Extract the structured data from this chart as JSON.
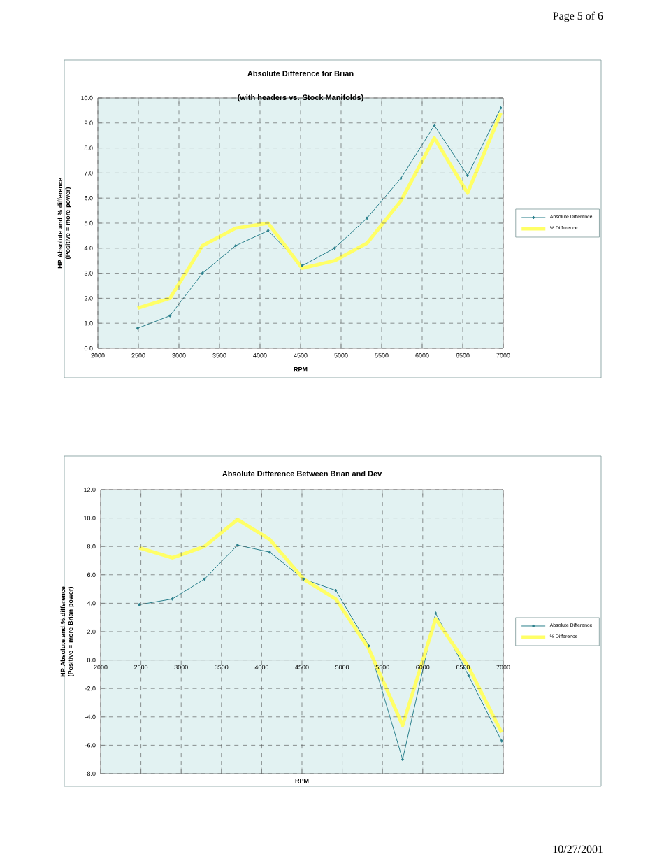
{
  "chart_data": [
    {
      "type": "line",
      "title": "Absolute Difference for Brian",
      "subtitle": "(with headers vs. Stock Manifolds)",
      "xlabel": "RPM",
      "ylabel": "HP Absolute and % difference (Positive = more power)",
      "xlim": [
        2000,
        7000
      ],
      "xticks": [
        2000,
        2500,
        3000,
        3500,
        4000,
        4500,
        5000,
        5500,
        6000,
        6500,
        7000
      ],
      "ylim": [
        0,
        10
      ],
      "yticks": [
        {
          "value": 0,
          "label": "0.0"
        },
        {
          "value": 1,
          "label": "1.0"
        },
        {
          "value": 2,
          "label": "2.0"
        },
        {
          "value": 3,
          "label": "3.0"
        },
        {
          "value": 4,
          "label": "4.0"
        },
        {
          "value": 5,
          "label": "5.0"
        },
        {
          "value": 6,
          "label": "6.0"
        },
        {
          "value": 7,
          "label": "7.0"
        },
        {
          "value": 8,
          "label": "8.0"
        },
        {
          "value": 9,
          "label": "9.0"
        },
        {
          "value": 10,
          "label": "10.0"
        }
      ],
      "x": [
        2490,
        2890,
        3290,
        3700,
        4100,
        4520,
        4920,
        5320,
        5740,
        6150,
        6560,
        6970
      ],
      "series": [
        {
          "name": "Absolute Difference",
          "color": "#2a7f8c",
          "marker": "diamond",
          "values": [
            0.8,
            1.3,
            3.0,
            4.1,
            4.7,
            3.3,
            4.0,
            5.2,
            6.8,
            8.9,
            6.9,
            9.6
          ]
        },
        {
          "name": "% Difference",
          "color": "#ffff66",
          "marker": "none",
          "values": [
            1.6,
            2.0,
            4.1,
            4.8,
            5.0,
            3.2,
            3.5,
            4.2,
            5.9,
            8.4,
            6.2,
            9.4
          ]
        }
      ],
      "grid": true,
      "legend": "right",
      "annotations": [
        "Page 5 of 6"
      ]
    },
    {
      "type": "line",
      "title": "Absolute Difference Between Brian and Dev",
      "xlabel": "RPM",
      "ylabel": "HP Absolute and % difference (Positive = more Brian power)",
      "xlim": [
        2000,
        7000
      ],
      "xticks": [
        2000,
        2500,
        3000,
        3500,
        4000,
        4500,
        5000,
        5500,
        6000,
        6500,
        7000
      ],
      "ylim": [
        -8,
        12
      ],
      "yticks": [
        {
          "value": -8,
          "label": "-8.0"
        },
        {
          "value": -6,
          "label": "-6.0"
        },
        {
          "value": -4,
          "label": "-4.0"
        },
        {
          "value": -2,
          "label": "-2.0"
        },
        {
          "value": 0,
          "label": "0.0"
        },
        {
          "value": 2,
          "label": "2.0"
        },
        {
          "value": 4,
          "label": "4.0"
        },
        {
          "value": 6,
          "label": "6.0"
        },
        {
          "value": 8,
          "label": "8.0"
        },
        {
          "value": 10,
          "label": "10.0"
        },
        {
          "value": 12,
          "label": "12.0"
        }
      ],
      "x": [
        2480,
        2890,
        3290,
        3700,
        4100,
        4520,
        4920,
        5330,
        5750,
        6160,
        6570,
        6980
      ],
      "series": [
        {
          "name": "Absolute Difference",
          "color": "#2a7f8c",
          "marker": "diamond",
          "values": [
            3.9,
            4.3,
            5.7,
            8.1,
            7.6,
            5.7,
            4.9,
            1.0,
            -7.0,
            3.3,
            -1.1,
            -5.7
          ]
        },
        {
          "name": "% Difference",
          "color": "#ffff66",
          "marker": "none",
          "values": [
            7.9,
            7.2,
            8.0,
            9.9,
            8.5,
            5.7,
            4.3,
            0.8,
            -4.6,
            2.9,
            -0.5,
            -5.1
          ]
        }
      ],
      "grid": true,
      "legend": "right",
      "annotations": [
        "10/27/2001"
      ]
    }
  ]
}
